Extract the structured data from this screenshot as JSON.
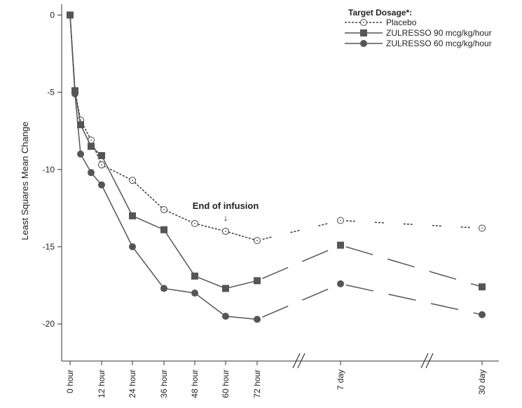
{
  "chart_data": {
    "type": "line",
    "ylabel": "Least Squares Mean Change",
    "ylim": [
      -22.4,
      0.7
    ],
    "yticks": [
      0,
      -5,
      -10,
      -15,
      -20
    ],
    "xtick_labels": [
      "0 hour",
      "12 hour",
      "24 hour",
      "36 hour",
      "48 hour",
      "60 hour",
      "72 hour",
      "7 day",
      "30 day"
    ],
    "x_break_marks": [
      "//",
      "//"
    ],
    "legend": {
      "title": "Target Dosage*:",
      "placement": "top-right"
    },
    "annotation": {
      "text": "End of infusion",
      "arrow": "↓",
      "at": "60 hour"
    },
    "series": [
      {
        "name": "Placebo",
        "style": "dotted",
        "marker": "open-circle",
        "color": "#444444",
        "points": [
          {
            "x": "0 hour",
            "y": 0
          },
          {
            "x": "2 hour",
            "y": -4.9
          },
          {
            "x": "4 hour",
            "y": -6.8
          },
          {
            "x": "8 hour",
            "y": -8.1
          },
          {
            "x": "12 hour",
            "y": -9.7
          },
          {
            "x": "24 hour",
            "y": -10.7
          },
          {
            "x": "36 hour",
            "y": -12.6
          },
          {
            "x": "48 hour",
            "y": -13.5
          },
          {
            "x": "60 hour",
            "y": -14.0
          },
          {
            "x": "72 hour",
            "y": -14.6
          },
          {
            "x": "7 day",
            "y": -13.3
          },
          {
            "x": "30 day",
            "y": -13.8
          }
        ]
      },
      {
        "name": "ZULRESSO 90 mcg/kg/hour",
        "style": "solid",
        "marker": "square",
        "color": "#555555",
        "points": [
          {
            "x": "0 hour",
            "y": 0
          },
          {
            "x": "2 hour",
            "y": -4.9
          },
          {
            "x": "4 hour",
            "y": -7.1
          },
          {
            "x": "8 hour",
            "y": -8.5
          },
          {
            "x": "12 hour",
            "y": -9.1
          },
          {
            "x": "24 hour",
            "y": -13.0
          },
          {
            "x": "36 hour",
            "y": -13.9
          },
          {
            "x": "48 hour",
            "y": -16.9
          },
          {
            "x": "60 hour",
            "y": -17.7
          },
          {
            "x": "72 hour",
            "y": -17.2
          },
          {
            "x": "7 day",
            "y": -14.9
          },
          {
            "x": "30 day",
            "y": -17.6
          }
        ]
      },
      {
        "name": "ZULRESSO 60 mcg/kg/hour",
        "style": "solid",
        "marker": "filled-circle",
        "color": "#555555",
        "points": [
          {
            "x": "0 hour",
            "y": 0
          },
          {
            "x": "2 hour",
            "y": -5.1
          },
          {
            "x": "4 hour",
            "y": -9.0
          },
          {
            "x": "8 hour",
            "y": -10.2
          },
          {
            "x": "12 hour",
            "y": -11.0
          },
          {
            "x": "24 hour",
            "y": -15.0
          },
          {
            "x": "36 hour",
            "y": -17.7
          },
          {
            "x": "48 hour",
            "y": -18.0
          },
          {
            "x": "60 hour",
            "y": -19.5
          },
          {
            "x": "72 hour",
            "y": -19.7
          },
          {
            "x": "7 day",
            "y": -17.4
          },
          {
            "x": "30 day",
            "y": -19.4
          }
        ]
      }
    ]
  }
}
